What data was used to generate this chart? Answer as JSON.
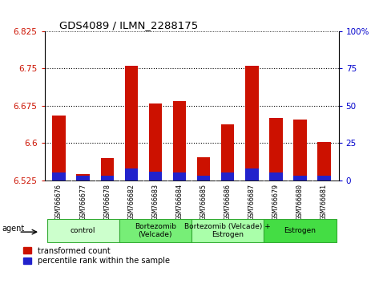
{
  "title": "GDS4089 / ILMN_2288175",
  "samples": [
    "GSM766676",
    "GSM766677",
    "GSM766678",
    "GSM766682",
    "GSM766683",
    "GSM766684",
    "GSM766685",
    "GSM766686",
    "GSM766687",
    "GSM766679",
    "GSM766680",
    "GSM766681"
  ],
  "red_values": [
    6.655,
    6.538,
    6.57,
    6.755,
    6.68,
    6.685,
    6.572,
    6.638,
    6.755,
    6.65,
    6.648,
    6.602
  ],
  "blue_percentiles": [
    5,
    3,
    3,
    8,
    6,
    5,
    3,
    5,
    8,
    5,
    3,
    3
  ],
  "baseline": 6.525,
  "ylim_left": [
    6.525,
    6.825
  ],
  "ylim_right": [
    0,
    100
  ],
  "yticks_left": [
    6.525,
    6.6,
    6.675,
    6.75,
    6.825
  ],
  "yticks_right": [
    0,
    25,
    50,
    75,
    100
  ],
  "grid_values": [
    6.6,
    6.675,
    6.75
  ],
  "groups": [
    {
      "label": "control",
      "start": 0,
      "end": 3,
      "color": "#ccffcc"
    },
    {
      "label": "Bortezomib\n(Velcade)",
      "start": 3,
      "end": 6,
      "color": "#77ee77"
    },
    {
      "label": "Bortezomib (Velcade) +\nEstrogen",
      "start": 6,
      "end": 9,
      "color": "#aaffaa"
    },
    {
      "label": "Estrogen",
      "start": 9,
      "end": 12,
      "color": "#44dd44"
    }
  ],
  "bar_color": "#cc1100",
  "blue_color": "#2222cc",
  "bar_width": 0.55,
  "legend_red": "transformed count",
  "legend_blue": "percentile rank within the sample",
  "agent_label": "agent",
  "left_label_color": "#cc1100",
  "right_label_color": "#0000cc",
  "xtick_bg_color": "#cccccc"
}
